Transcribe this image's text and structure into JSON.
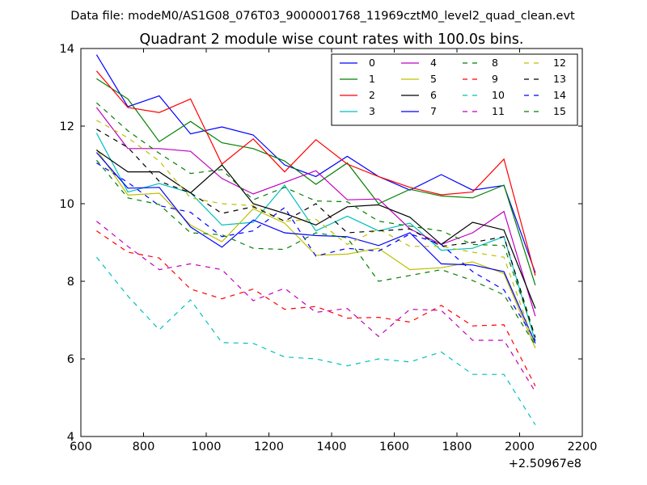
{
  "header": {
    "data_file": "Data file: modeM0/AS1G08_076T03_9000001768_11969cztM0_level2_quad_clean.evt"
  },
  "chart_data": {
    "type": "line",
    "title": "Quadrant 2 module wise count rates with 100.0s bins.",
    "xlabel": "",
    "ylabel": "",
    "x_offset_label": "+2.50967e8",
    "xlim": [
      600,
      2200
    ],
    "ylim": [
      4,
      14
    ],
    "xticks": [
      600,
      800,
      1000,
      1200,
      1400,
      1600,
      1800,
      2000,
      2200
    ],
    "yticks": [
      4,
      6,
      8,
      10,
      12,
      14
    ],
    "grid": false,
    "legend_position": "top-right",
    "x": [
      650,
      750,
      850,
      950,
      1050,
      1150,
      1250,
      1350,
      1450,
      1550,
      1650,
      1750,
      1850,
      1950,
      2050
    ],
    "series": [
      {
        "name": "0",
        "color": "#0000ff",
        "dash": "solid",
        "values": [
          13.84,
          12.5,
          12.78,
          11.8,
          11.98,
          11.77,
          11.0,
          10.7,
          11.22,
          10.7,
          10.35,
          10.75,
          10.35,
          10.47,
          8.22
        ]
      },
      {
        "name": "1",
        "color": "#008000",
        "dash": "solid",
        "values": [
          13.22,
          12.7,
          11.6,
          12.12,
          11.57,
          11.42,
          11.1,
          10.5,
          11.05,
          10.0,
          10.37,
          10.2,
          10.15,
          10.48,
          7.9
        ]
      },
      {
        "name": "2",
        "color": "#ff0000",
        "dash": "solid",
        "values": [
          13.42,
          12.48,
          12.35,
          12.7,
          11.02,
          11.67,
          10.82,
          11.65,
          11.02,
          10.7,
          10.42,
          10.23,
          10.3,
          11.15,
          8.15
        ]
      },
      {
        "name": "3",
        "color": "#00bfbf",
        "dash": "solid",
        "values": [
          11.82,
          10.3,
          10.52,
          10.28,
          9.45,
          9.52,
          10.48,
          9.3,
          9.68,
          9.3,
          9.5,
          8.8,
          8.85,
          9.15,
          6.45
        ]
      },
      {
        "name": "4",
        "color": "#bf00bf",
        "dash": "solid",
        "values": [
          12.48,
          11.42,
          11.42,
          11.35,
          10.65,
          10.25,
          10.55,
          10.85,
          10.1,
          10.12,
          9.35,
          8.95,
          9.25,
          9.8,
          7.1
        ]
      },
      {
        "name": "5",
        "color": "#bfbf00",
        "dash": "solid",
        "values": [
          11.4,
          10.22,
          10.27,
          9.45,
          9.02,
          9.87,
          9.5,
          8.67,
          8.7,
          8.85,
          8.3,
          8.35,
          8.5,
          8.2,
          6.28
        ]
      },
      {
        "name": "6",
        "color": "#000000",
        "dash": "solid",
        "values": [
          11.38,
          10.82,
          10.82,
          10.28,
          11.0,
          10.0,
          9.75,
          9.45,
          9.92,
          9.97,
          9.65,
          8.95,
          9.52,
          9.32,
          7.3
        ]
      },
      {
        "name": "7",
        "color": "#0000ff",
        "dash": "solid",
        "values": [
          11.32,
          10.4,
          10.42,
          9.4,
          8.88,
          9.58,
          9.25,
          9.18,
          9.15,
          8.92,
          9.25,
          8.45,
          8.42,
          8.25,
          6.4
        ]
      },
      {
        "name": "8",
        "color": "#008000",
        "dash": "dashed",
        "values": [
          12.6,
          11.88,
          11.3,
          10.78,
          10.88,
          10.1,
          10.42,
          10.07,
          10.05,
          9.55,
          9.42,
          9.3,
          8.95,
          8.92,
          6.55
        ]
      },
      {
        "name": "9",
        "color": "#ff0000",
        "dash": "dashed",
        "values": [
          9.3,
          8.75,
          8.6,
          7.8,
          7.55,
          7.8,
          7.28,
          7.35,
          7.05,
          7.07,
          6.95,
          7.38,
          6.85,
          6.88,
          5.3
        ]
      },
      {
        "name": "10",
        "color": "#00bfbf",
        "dash": "dashed",
        "values": [
          8.62,
          7.62,
          6.75,
          7.52,
          6.42,
          6.4,
          6.05,
          6.0,
          5.82,
          6.0,
          5.92,
          6.18,
          5.6,
          5.6,
          4.3
        ]
      },
      {
        "name": "11",
        "color": "#bf00bf",
        "dash": "dashed",
        "values": [
          9.55,
          8.9,
          8.3,
          8.45,
          8.3,
          7.5,
          7.82,
          7.2,
          7.3,
          6.58,
          7.28,
          7.25,
          6.48,
          6.48,
          5.15
        ]
      },
      {
        "name": "12",
        "color": "#bfbf00",
        "dash": "dashed",
        "values": [
          12.15,
          11.7,
          11.1,
          10.15,
          10.0,
          9.95,
          9.55,
          9.6,
          8.95,
          9.35,
          8.9,
          8.9,
          8.75,
          8.62,
          6.32
        ]
      },
      {
        "name": "13",
        "color": "#000000",
        "dash": "dashed",
        "values": [
          11.92,
          11.45,
          10.58,
          10.28,
          9.75,
          9.92,
          9.55,
          10.0,
          9.25,
          9.3,
          9.35,
          8.9,
          9.0,
          9.15,
          6.55
        ]
      },
      {
        "name": "14",
        "color": "#0000ff",
        "dash": "dashed",
        "values": [
          11.05,
          10.55,
          9.95,
          9.78,
          9.15,
          9.3,
          9.9,
          8.65,
          8.85,
          8.78,
          9.22,
          8.95,
          8.25,
          7.78,
          6.48
        ]
      },
      {
        "name": "15",
        "color": "#008000",
        "dash": "dashed",
        "values": [
          11.12,
          10.15,
          9.98,
          9.25,
          9.2,
          8.85,
          8.82,
          9.25,
          9.12,
          8.0,
          8.15,
          8.3,
          8.02,
          7.65,
          6.35
        ]
      }
    ]
  }
}
